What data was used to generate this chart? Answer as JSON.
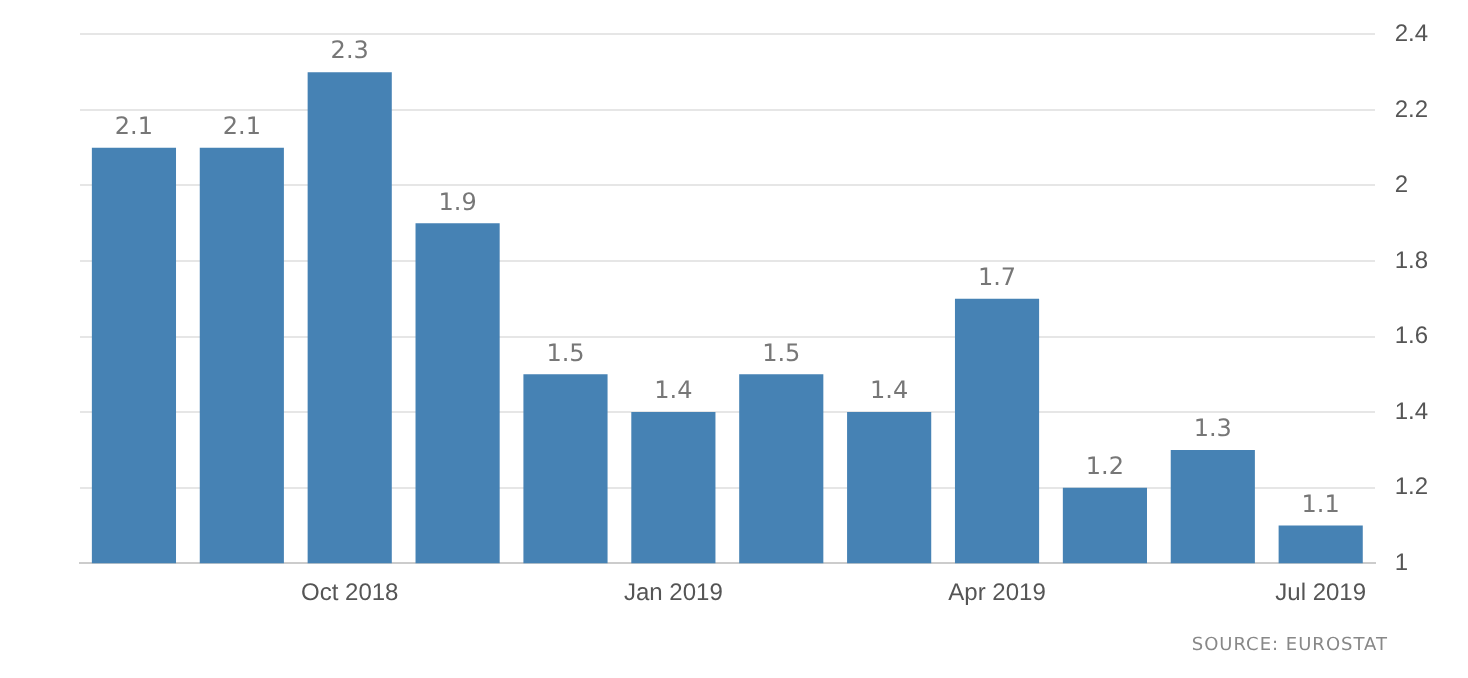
{
  "chart_data": {
    "type": "bar",
    "categories": [
      null,
      null,
      "Oct 2018",
      null,
      null,
      "Jan 2019",
      null,
      null,
      "Apr 2019",
      null,
      null,
      "Jul 2019"
    ],
    "values": [
      2.1,
      2.1,
      2.3,
      1.9,
      1.5,
      1.4,
      1.5,
      1.4,
      1.7,
      1.2,
      1.3,
      1.1
    ],
    "color": "#4682b4",
    "ylim": [
      1,
      2.4
    ],
    "yticks": [
      1,
      1.2,
      1.4,
      1.6,
      1.8,
      2,
      2.2,
      2.4
    ],
    "grid": "y",
    "legend": false,
    "data_labels": true,
    "annotations": [
      "SOURCE: EUROSTAT"
    ]
  }
}
